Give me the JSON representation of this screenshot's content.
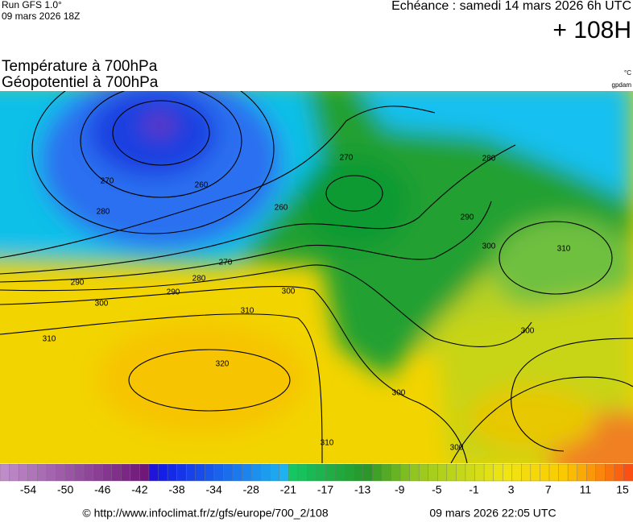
{
  "header": {
    "run": "Run GFS 1.0°",
    "run_date": "09 mars 2026 18Z",
    "valid": "Echéance : samedi 14 mars 2026 6h UTC",
    "lead": "+ 108H",
    "title_1": "Température à 700hPa",
    "title_2": "Géopotentiel à 700hPa",
    "unit_temp": "°C",
    "unit_geo": "gpdam"
  },
  "contour_labels": [
    "270",
    "280",
    "260",
    "270",
    "280",
    "290",
    "290",
    "300",
    "300",
    "310",
    "310",
    "320",
    "270",
    "260",
    "280",
    "290",
    "300",
    "310",
    "300",
    "300",
    "300",
    "310"
  ],
  "colorbar": {
    "ticks": [
      -54,
      -50,
      -46,
      -42,
      -38,
      -34,
      -28,
      -21,
      -17,
      -13,
      -9,
      -5,
      -1,
      3,
      7,
      11,
      15
    ]
  },
  "footer": {
    "source": "© http://www.infoclimat.fr/z/gfs/europe/700_2/108",
    "generated": "09 mars 2026 22:05 UTC"
  }
}
